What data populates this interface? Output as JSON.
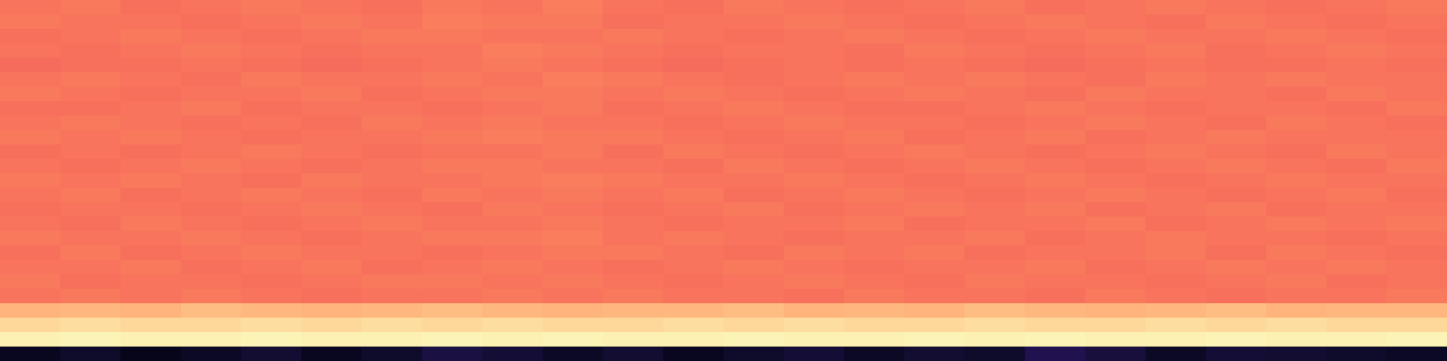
{
  "chart_data": {
    "type": "heatmap",
    "tick_labels": false,
    "zlim": [
      0,
      1
    ],
    "values": [
      [
        0.71,
        0.72,
        0.7,
        0.71,
        0.72,
        0.71,
        0.7,
        0.72,
        0.71,
        0.73,
        0.71,
        0.7,
        0.72,
        0.71,
        0.7,
        0.71,
        0.72,
        0.7,
        0.71,
        0.72,
        0.71,
        0.7,
        0.71,
        0.72
      ],
      [
        0.72,
        0.71,
        0.71,
        0.7,
        0.71,
        0.72,
        0.71,
        0.73,
        0.72,
        0.72,
        0.7,
        0.71,
        0.71,
        0.72,
        0.71,
        0.7,
        0.71,
        0.72,
        0.71,
        0.7,
        0.72,
        0.71,
        0.7,
        0.71
      ],
      [
        0.7,
        0.71,
        0.72,
        0.71,
        0.7,
        0.71,
        0.72,
        0.72,
        0.71,
        0.71,
        0.72,
        0.71,
        0.7,
        0.71,
        0.72,
        0.71,
        0.7,
        0.71,
        0.72,
        0.71,
        0.71,
        0.72,
        0.71,
        0.7
      ],
      [
        0.71,
        0.7,
        0.71,
        0.72,
        0.71,
        0.7,
        0.71,
        0.71,
        0.73,
        0.72,
        0.71,
        0.7,
        0.71,
        0.71,
        0.7,
        0.72,
        0.71,
        0.7,
        0.71,
        0.72,
        0.7,
        0.71,
        0.72,
        0.71
      ],
      [
        0.69,
        0.7,
        0.7,
        0.71,
        0.7,
        0.69,
        0.7,
        0.71,
        0.72,
        0.71,
        0.7,
        0.69,
        0.7,
        0.71,
        0.7,
        0.71,
        0.7,
        0.69,
        0.7,
        0.71,
        0.7,
        0.7,
        0.71,
        0.7
      ],
      [
        0.71,
        0.72,
        0.71,
        0.7,
        0.72,
        0.71,
        0.71,
        0.72,
        0.71,
        0.73,
        0.72,
        0.71,
        0.7,
        0.71,
        0.72,
        0.71,
        0.72,
        0.71,
        0.7,
        0.72,
        0.71,
        0.72,
        0.71,
        0.71
      ],
      [
        0.72,
        0.71,
        0.7,
        0.71,
        0.71,
        0.72,
        0.7,
        0.71,
        0.72,
        0.72,
        0.71,
        0.72,
        0.71,
        0.7,
        0.71,
        0.72,
        0.71,
        0.7,
        0.72,
        0.71,
        0.71,
        0.7,
        0.72,
        0.71
      ],
      [
        0.7,
        0.7,
        0.71,
        0.72,
        0.7,
        0.71,
        0.71,
        0.7,
        0.71,
        0.72,
        0.7,
        0.71,
        0.72,
        0.71,
        0.7,
        0.7,
        0.71,
        0.72,
        0.71,
        0.7,
        0.71,
        0.71,
        0.7,
        0.72
      ],
      [
        0.71,
        0.72,
        0.71,
        0.7,
        0.71,
        0.7,
        0.72,
        0.71,
        0.72,
        0.71,
        0.71,
        0.7,
        0.71,
        0.72,
        0.71,
        0.71,
        0.7,
        0.71,
        0.72,
        0.71,
        0.7,
        0.72,
        0.71,
        0.7
      ],
      [
        0.72,
        0.71,
        0.72,
        0.71,
        0.7,
        0.71,
        0.71,
        0.72,
        0.73,
        0.72,
        0.72,
        0.71,
        0.7,
        0.71,
        0.72,
        0.7,
        0.71,
        0.72,
        0.7,
        0.71,
        0.72,
        0.71,
        0.71,
        0.71
      ],
      [
        0.7,
        0.71,
        0.7,
        0.71,
        0.72,
        0.71,
        0.7,
        0.71,
        0.71,
        0.72,
        0.7,
        0.72,
        0.71,
        0.7,
        0.71,
        0.72,
        0.71,
        0.7,
        0.71,
        0.72,
        0.71,
        0.7,
        0.72,
        0.71
      ],
      [
        0.71,
        0.7,
        0.71,
        0.72,
        0.71,
        0.7,
        0.71,
        0.72,
        0.72,
        0.71,
        0.71,
        0.7,
        0.72,
        0.71,
        0.7,
        0.71,
        0.72,
        0.71,
        0.7,
        0.71,
        0.72,
        0.71,
        0.7,
        0.72
      ],
      [
        0.72,
        0.71,
        0.72,
        0.71,
        0.7,
        0.72,
        0.71,
        0.71,
        0.72,
        0.73,
        0.72,
        0.71,
        0.71,
        0.72,
        0.71,
        0.7,
        0.71,
        0.72,
        0.71,
        0.7,
        0.71,
        0.72,
        0.71,
        0.71
      ],
      [
        0.71,
        0.72,
        0.7,
        0.71,
        0.72,
        0.71,
        0.7,
        0.72,
        0.71,
        0.72,
        0.71,
        0.72,
        0.7,
        0.71,
        0.72,
        0.71,
        0.7,
        0.71,
        0.72,
        0.71,
        0.7,
        0.71,
        0.72,
        0.7
      ],
      [
        0.7,
        0.71,
        0.71,
        0.7,
        0.71,
        0.72,
        0.71,
        0.7,
        0.72,
        0.71,
        0.7,
        0.71,
        0.72,
        0.7,
        0.71,
        0.72,
        0.71,
        0.72,
        0.7,
        0.71,
        0.72,
        0.7,
        0.71,
        0.71
      ],
      [
        0.71,
        0.7,
        0.72,
        0.71,
        0.7,
        0.71,
        0.72,
        0.71,
        0.71,
        0.72,
        0.71,
        0.7,
        0.71,
        0.71,
        0.72,
        0.7,
        0.71,
        0.71,
        0.72,
        0.7,
        0.71,
        0.72,
        0.71,
        0.72
      ],
      [
        0.72,
        0.71,
        0.71,
        0.72,
        0.71,
        0.7,
        0.71,
        0.72,
        0.72,
        0.73,
        0.71,
        0.72,
        0.71,
        0.7,
        0.71,
        0.71,
        0.72,
        0.7,
        0.71,
        0.72,
        0.71,
        0.71,
        0.7,
        0.71
      ],
      [
        0.7,
        0.72,
        0.7,
        0.71,
        0.72,
        0.71,
        0.71,
        0.7,
        0.71,
        0.72,
        0.72,
        0.71,
        0.7,
        0.72,
        0.71,
        0.72,
        0.7,
        0.71,
        0.71,
        0.72,
        0.7,
        0.72,
        0.71,
        0.7
      ],
      [
        0.71,
        0.71,
        0.72,
        0.7,
        0.71,
        0.72,
        0.7,
        0.71,
        0.72,
        0.71,
        0.7,
        0.71,
        0.72,
        0.71,
        0.7,
        0.71,
        0.71,
        0.72,
        0.7,
        0.71,
        0.72,
        0.71,
        0.72,
        0.71
      ],
      [
        0.72,
        0.7,
        0.71,
        0.71,
        0.7,
        0.71,
        0.72,
        0.72,
        0.71,
        0.72,
        0.71,
        0.7,
        0.71,
        0.72,
        0.71,
        0.7,
        0.72,
        0.71,
        0.71,
        0.7,
        0.71,
        0.72,
        0.7,
        0.71
      ],
      [
        0.71,
        0.72,
        0.71,
        0.72,
        0.71,
        0.7,
        0.71,
        0.71,
        0.72,
        0.71,
        0.72,
        0.71,
        0.71,
        0.7,
        0.72,
        0.71,
        0.71,
        0.7,
        0.72,
        0.71,
        0.7,
        0.71,
        0.71,
        0.72
      ],
      [
        0.84,
        0.85,
        0.84,
        0.86,
        0.85,
        0.84,
        0.85,
        0.86,
        0.85,
        0.84,
        0.85,
        0.85,
        0.86,
        0.84,
        0.85,
        0.84,
        0.86,
        0.85,
        0.84,
        0.85,
        0.86,
        0.84,
        0.85,
        0.85
      ],
      [
        0.92,
        0.93,
        0.92,
        0.92,
        0.93,
        0.92,
        0.93,
        0.92,
        0.93,
        0.92,
        0.92,
        0.93,
        0.92,
        0.93,
        0.92,
        0.92,
        0.93,
        0.92,
        0.92,
        0.93,
        0.92,
        0.93,
        0.92,
        0.92
      ],
      [
        0.97,
        0.98,
        0.97,
        0.97,
        0.98,
        0.97,
        0.97,
        0.98,
        0.97,
        0.98,
        0.97,
        0.97,
        0.98,
        0.97,
        0.97,
        0.98,
        0.97,
        0.98,
        0.97,
        0.97,
        0.98,
        0.97,
        0.97,
        0.98
      ],
      [
        0.06,
        0.08,
        0.05,
        0.07,
        0.09,
        0.06,
        0.08,
        0.12,
        0.1,
        0.07,
        0.09,
        0.06,
        0.08,
        0.1,
        0.07,
        0.09,
        0.08,
        0.14,
        0.11,
        0.07,
        0.1,
        0.09,
        0.08,
        0.07
      ]
    ]
  }
}
